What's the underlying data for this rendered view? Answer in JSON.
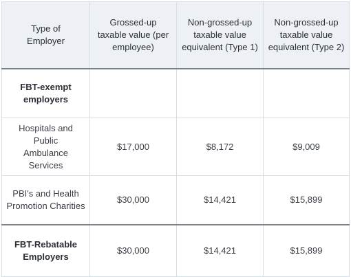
{
  "header": {
    "col1": "Type of Employer",
    "col2": "Grossed-up taxable value (per employee)",
    "col3": "Non-grossed-up taxable value equivalent (Type 1)",
    "col4": "Non-grossed-up taxable value equivalent (Type 2)"
  },
  "rows": [
    {
      "label": "FBT-exempt employers",
      "grossed": "",
      "type1": "",
      "type2": ""
    },
    {
      "label": "Hospitals and Public Ambulance Services",
      "grossed": "$17,000",
      "type1": "$8,172",
      "type2": "$9,009"
    },
    {
      "label": "PBI's and Health Promotion Charities",
      "grossed": "$30,000",
      "type1": "$14,421",
      "type2": "$15,899"
    },
    {
      "label": "FBT-Rebatable Employers",
      "grossed": "$30,000",
      "type1": "$14,421",
      "type2": "$15,899"
    }
  ]
}
